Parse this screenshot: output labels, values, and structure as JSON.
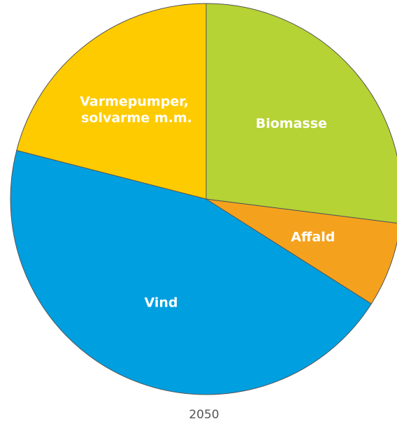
{
  "chart_data": {
    "type": "pie",
    "title": "2050",
    "categories": [
      "Biomasse",
      "Affald",
      "Vind",
      "Varmepumper, solvarme m.m."
    ],
    "values": [
      27,
      7,
      45,
      21
    ],
    "colors": [
      "#b5d334",
      "#f4a21d",
      "#009fe0",
      "#fecb00"
    ]
  }
}
